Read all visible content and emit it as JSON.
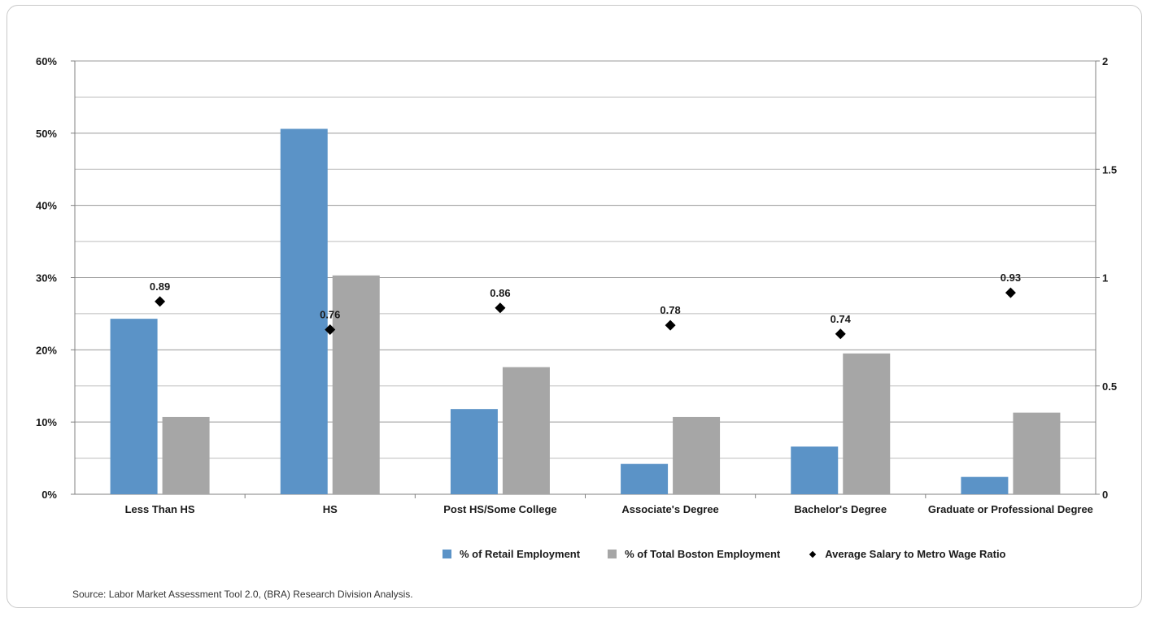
{
  "chart_data": {
    "type": "bar",
    "categories": [
      "Less Than HS",
      "HS",
      "Post HS/Some College",
      "Associate's Degree",
      "Bachelor's Degree",
      "Graduate or Professional Degree"
    ],
    "series": [
      {
        "name": "% of Retail Employment",
        "axis": "left",
        "kind": "bar",
        "color": "#5b93c7",
        "values": [
          24.3,
          50.6,
          11.8,
          4.2,
          6.6,
          2.4
        ]
      },
      {
        "name": "% of Total Boston Employment",
        "axis": "left",
        "kind": "bar",
        "color": "#a6a6a6",
        "values": [
          10.7,
          30.3,
          17.6,
          10.7,
          19.5,
          11.3
        ]
      },
      {
        "name": "Average Salary to Metro Wage Ratio",
        "axis": "right",
        "kind": "marker",
        "color": "#000000",
        "values": [
          0.89,
          0.76,
          0.86,
          0.78,
          0.74,
          0.93
        ],
        "labels": [
          "0.89",
          "0.76",
          "0.86",
          "0.78",
          "0.74",
          "0.93"
        ]
      }
    ],
    "y_left": {
      "ylim": [
        0,
        60
      ],
      "ticks": [
        0,
        10,
        20,
        30,
        40,
        50,
        60
      ],
      "tick_labels": [
        "0%",
        "10%",
        "20%",
        "30%",
        "40%",
        "50%",
        "60%"
      ]
    },
    "y_right": {
      "ylim": [
        0,
        2
      ],
      "ticks": [
        0,
        0.5,
        1,
        1.5,
        2
      ],
      "tick_labels": [
        "0",
        "0.5",
        "1",
        "1.5",
        "2"
      ]
    },
    "grid": true,
    "legend_position": "bottom-right"
  },
  "legend": {
    "retail": "% of Retail Employment",
    "boston": "% of Total Boston Employment",
    "ratio": "Average Salary to Metro Wage Ratio"
  },
  "source": "Source: Labor Market Assessment Tool 2.0, (BRA) Research Division Analysis."
}
